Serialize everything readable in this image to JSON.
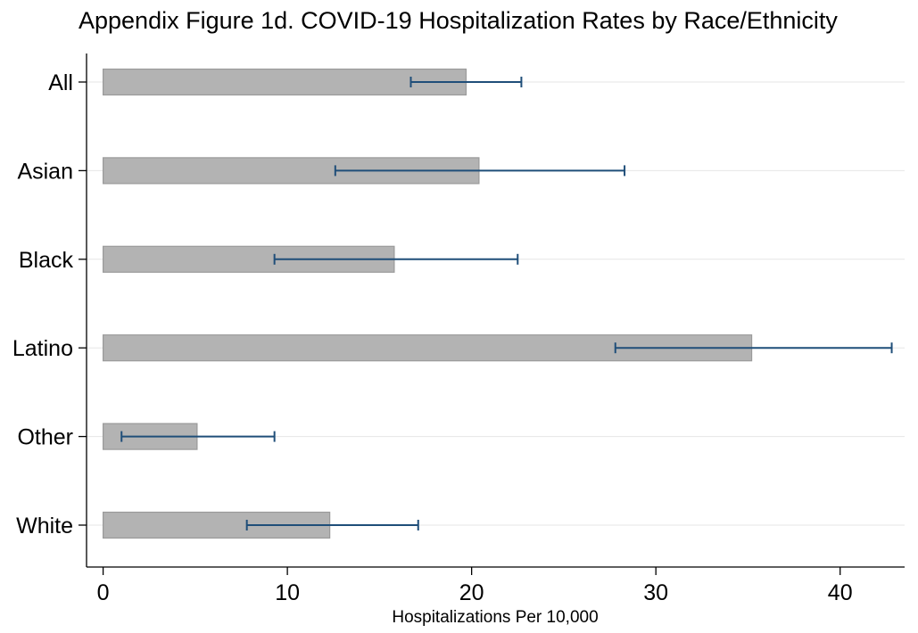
{
  "chart_data": {
    "type": "bar",
    "orientation": "horizontal",
    "title": "Appendix Figure 1d. COVID-19 Hospitalization Rates by Race/Ethnicity",
    "xlabel": "Hospitalizations Per 10,000",
    "ylabel": "",
    "categories": [
      "All",
      "Asian",
      "Black",
      "Latino",
      "Other",
      "White"
    ],
    "values": [
      19.7,
      20.4,
      15.8,
      35.2,
      5.1,
      12.3
    ],
    "ci_low": [
      16.7,
      12.6,
      9.3,
      27.8,
      1.0,
      7.8
    ],
    "ci_high": [
      22.7,
      28.3,
      22.5,
      42.8,
      9.3,
      17.1
    ],
    "xlim": [
      -0.9,
      43.5
    ],
    "xticks": [
      0,
      10,
      20,
      30,
      40
    ],
    "xtick_labels": [
      "0",
      "10",
      "20",
      "30",
      "40"
    ],
    "grid": "horizontal lines at categories",
    "legend": "none",
    "colors": {
      "bar_fill": "#b3b3b3",
      "bar_stroke": "#9a9a9a",
      "error_bar": "#1f4e79",
      "grid": "#e6e6e6",
      "axis": "#000000"
    }
  }
}
